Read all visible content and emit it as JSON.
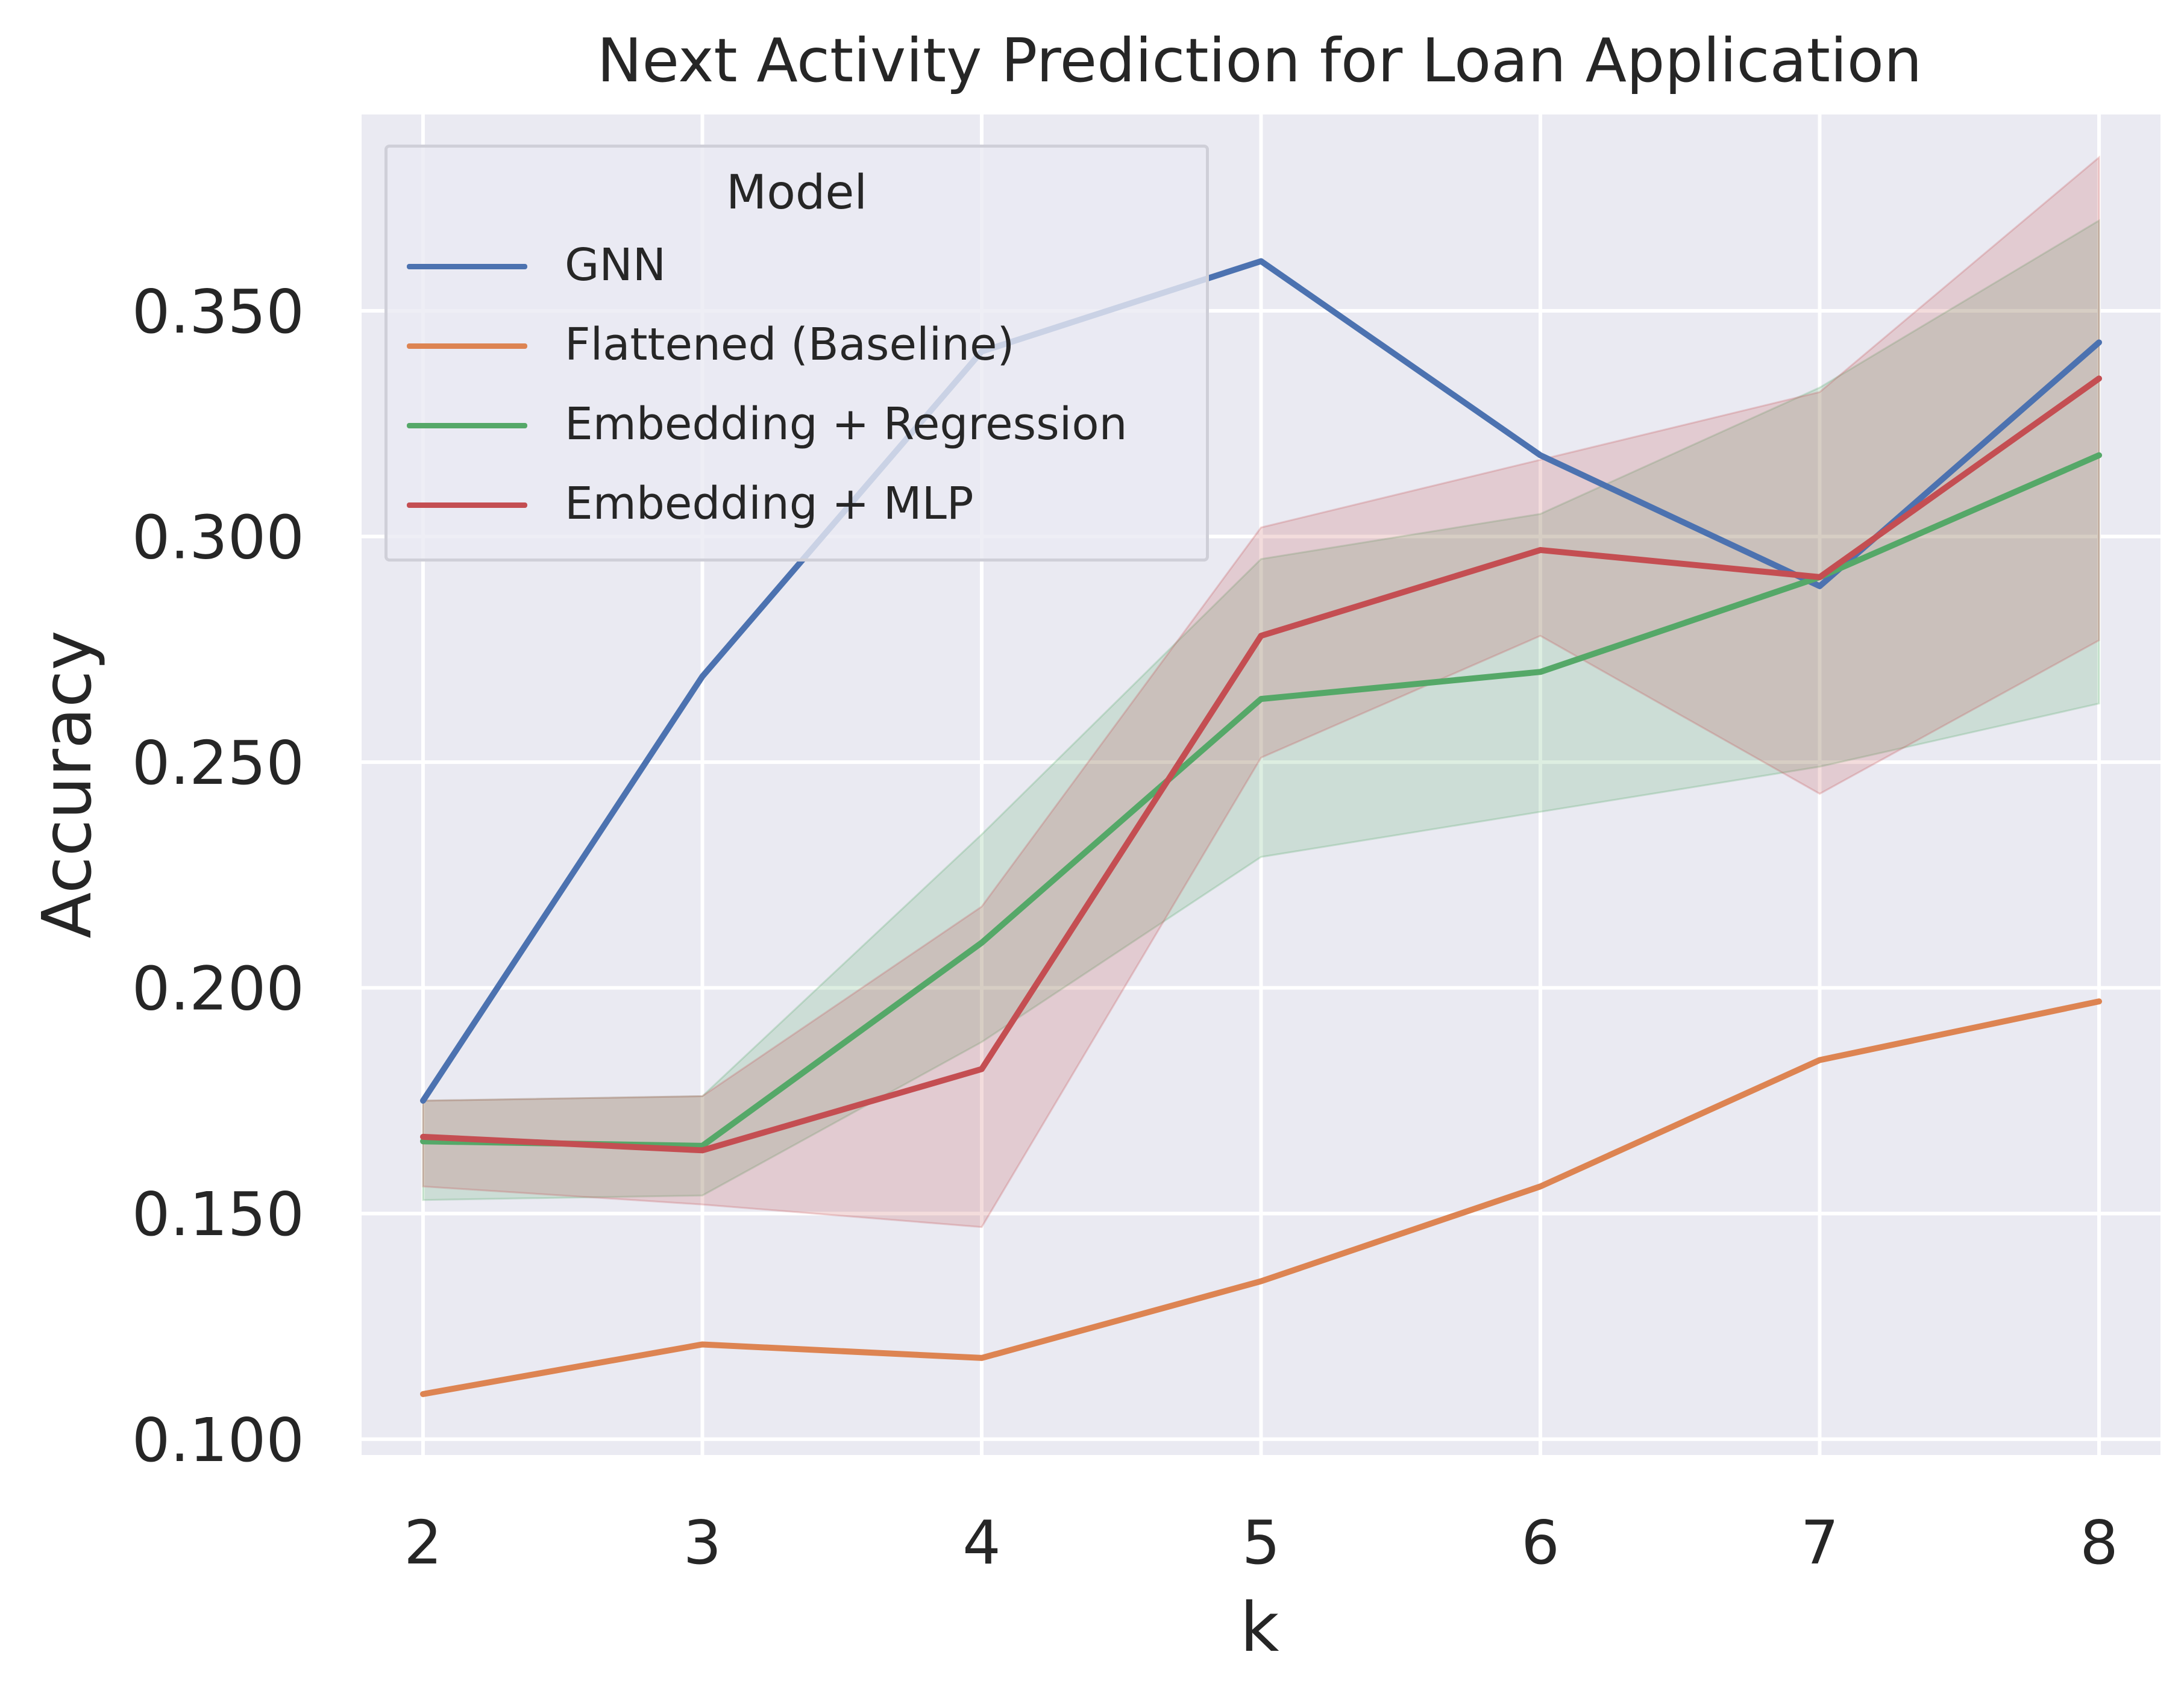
{
  "chart_data": {
    "type": "line",
    "title": "Next Activity Prediction for Loan Application",
    "xlabel": "k",
    "ylabel": "Accuracy",
    "x": [
      2,
      3,
      4,
      5,
      6,
      7,
      8
    ],
    "xlim": [
      1.78,
      8.22
    ],
    "ylim": [
      0.0965,
      0.3935
    ],
    "yticks": [
      0.1,
      0.15,
      0.2,
      0.25,
      0.3,
      0.35
    ],
    "ytick_labels": [
      "0.100",
      "0.150",
      "0.200",
      "0.250",
      "0.300",
      "0.350"
    ],
    "xtick_labels": [
      "2",
      "3",
      "4",
      "5",
      "6",
      "7",
      "8"
    ],
    "grid": true,
    "legend_title": "Model",
    "legend_position": "upper-left",
    "series": [
      {
        "name": "GNN",
        "color": "#4c72b0",
        "values": [
          0.175,
          0.269,
          0.341,
          0.361,
          0.318,
          0.289,
          0.343
        ]
      },
      {
        "name": "Flattened (Baseline)",
        "color": "#dd8452",
        "values": [
          0.11,
          0.121,
          0.118,
          0.135,
          0.156,
          0.184,
          0.197
        ]
      },
      {
        "name": "Embedding + Regression",
        "color": "#55a868",
        "values": [
          0.166,
          0.165,
          0.21,
          0.264,
          0.27,
          0.291,
          0.318
        ],
        "band_lower": [
          0.153,
          0.154,
          0.188,
          0.229,
          0.239,
          0.249,
          0.263
        ],
        "band_upper": [
          0.175,
          0.176,
          0.234,
          0.295,
          0.305,
          0.333,
          0.37
        ]
      },
      {
        "name": "Embedding + MLP",
        "color": "#c44e52",
        "values": [
          0.167,
          0.164,
          0.182,
          0.278,
          0.297,
          0.291,
          0.335
        ],
        "band_lower": [
          0.156,
          0.152,
          0.147,
          0.251,
          0.278,
          0.243,
          0.277
        ],
        "band_upper": [
          0.175,
          0.176,
          0.218,
          0.302,
          0.317,
          0.332,
          0.384
        ]
      }
    ]
  }
}
